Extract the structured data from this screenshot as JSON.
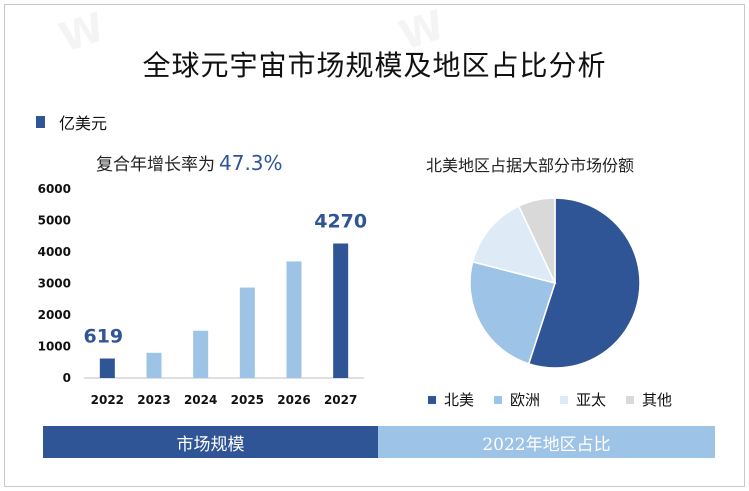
{
  "title": "全球元宇宙市场规模及地区占比分析",
  "unit_legend": "亿美元",
  "growth_prefix": "复合年增长率为",
  "growth_value": "47.3%",
  "pie_subtitle": "北美地区占据大部分市场份额",
  "band_left": "市场规模",
  "band_right": "2022年地区占比",
  "colors": {
    "dark": "#2f5597",
    "light": "#9dc3e6",
    "lighter": "#deebf7",
    "grey": "#d9d9d9",
    "band_left": "#2f5597",
    "band_right": "#9dc3e6"
  },
  "chart_data": [
    {
      "type": "bar",
      "categories": [
        "2022",
        "2023",
        "2024",
        "2025",
        "2026",
        "2027"
      ],
      "values": [
        619,
        800,
        1500,
        2870,
        3700,
        4270
      ],
      "data_labels": [
        {
          "index": 0,
          "text": "619"
        },
        {
          "index": 5,
          "text": "4270"
        }
      ],
      "yticks": [
        "0",
        "1000",
        "2000",
        "3000",
        "4000",
        "5000",
        "6000"
      ],
      "ylim": [
        0,
        6000
      ],
      "grid": false
    },
    {
      "type": "pie",
      "categories": [
        "北美",
        "欧洲",
        "亚太",
        "其他"
      ],
      "values": [
        55,
        24,
        14,
        7
      ],
      "legend": "bottom"
    }
  ]
}
